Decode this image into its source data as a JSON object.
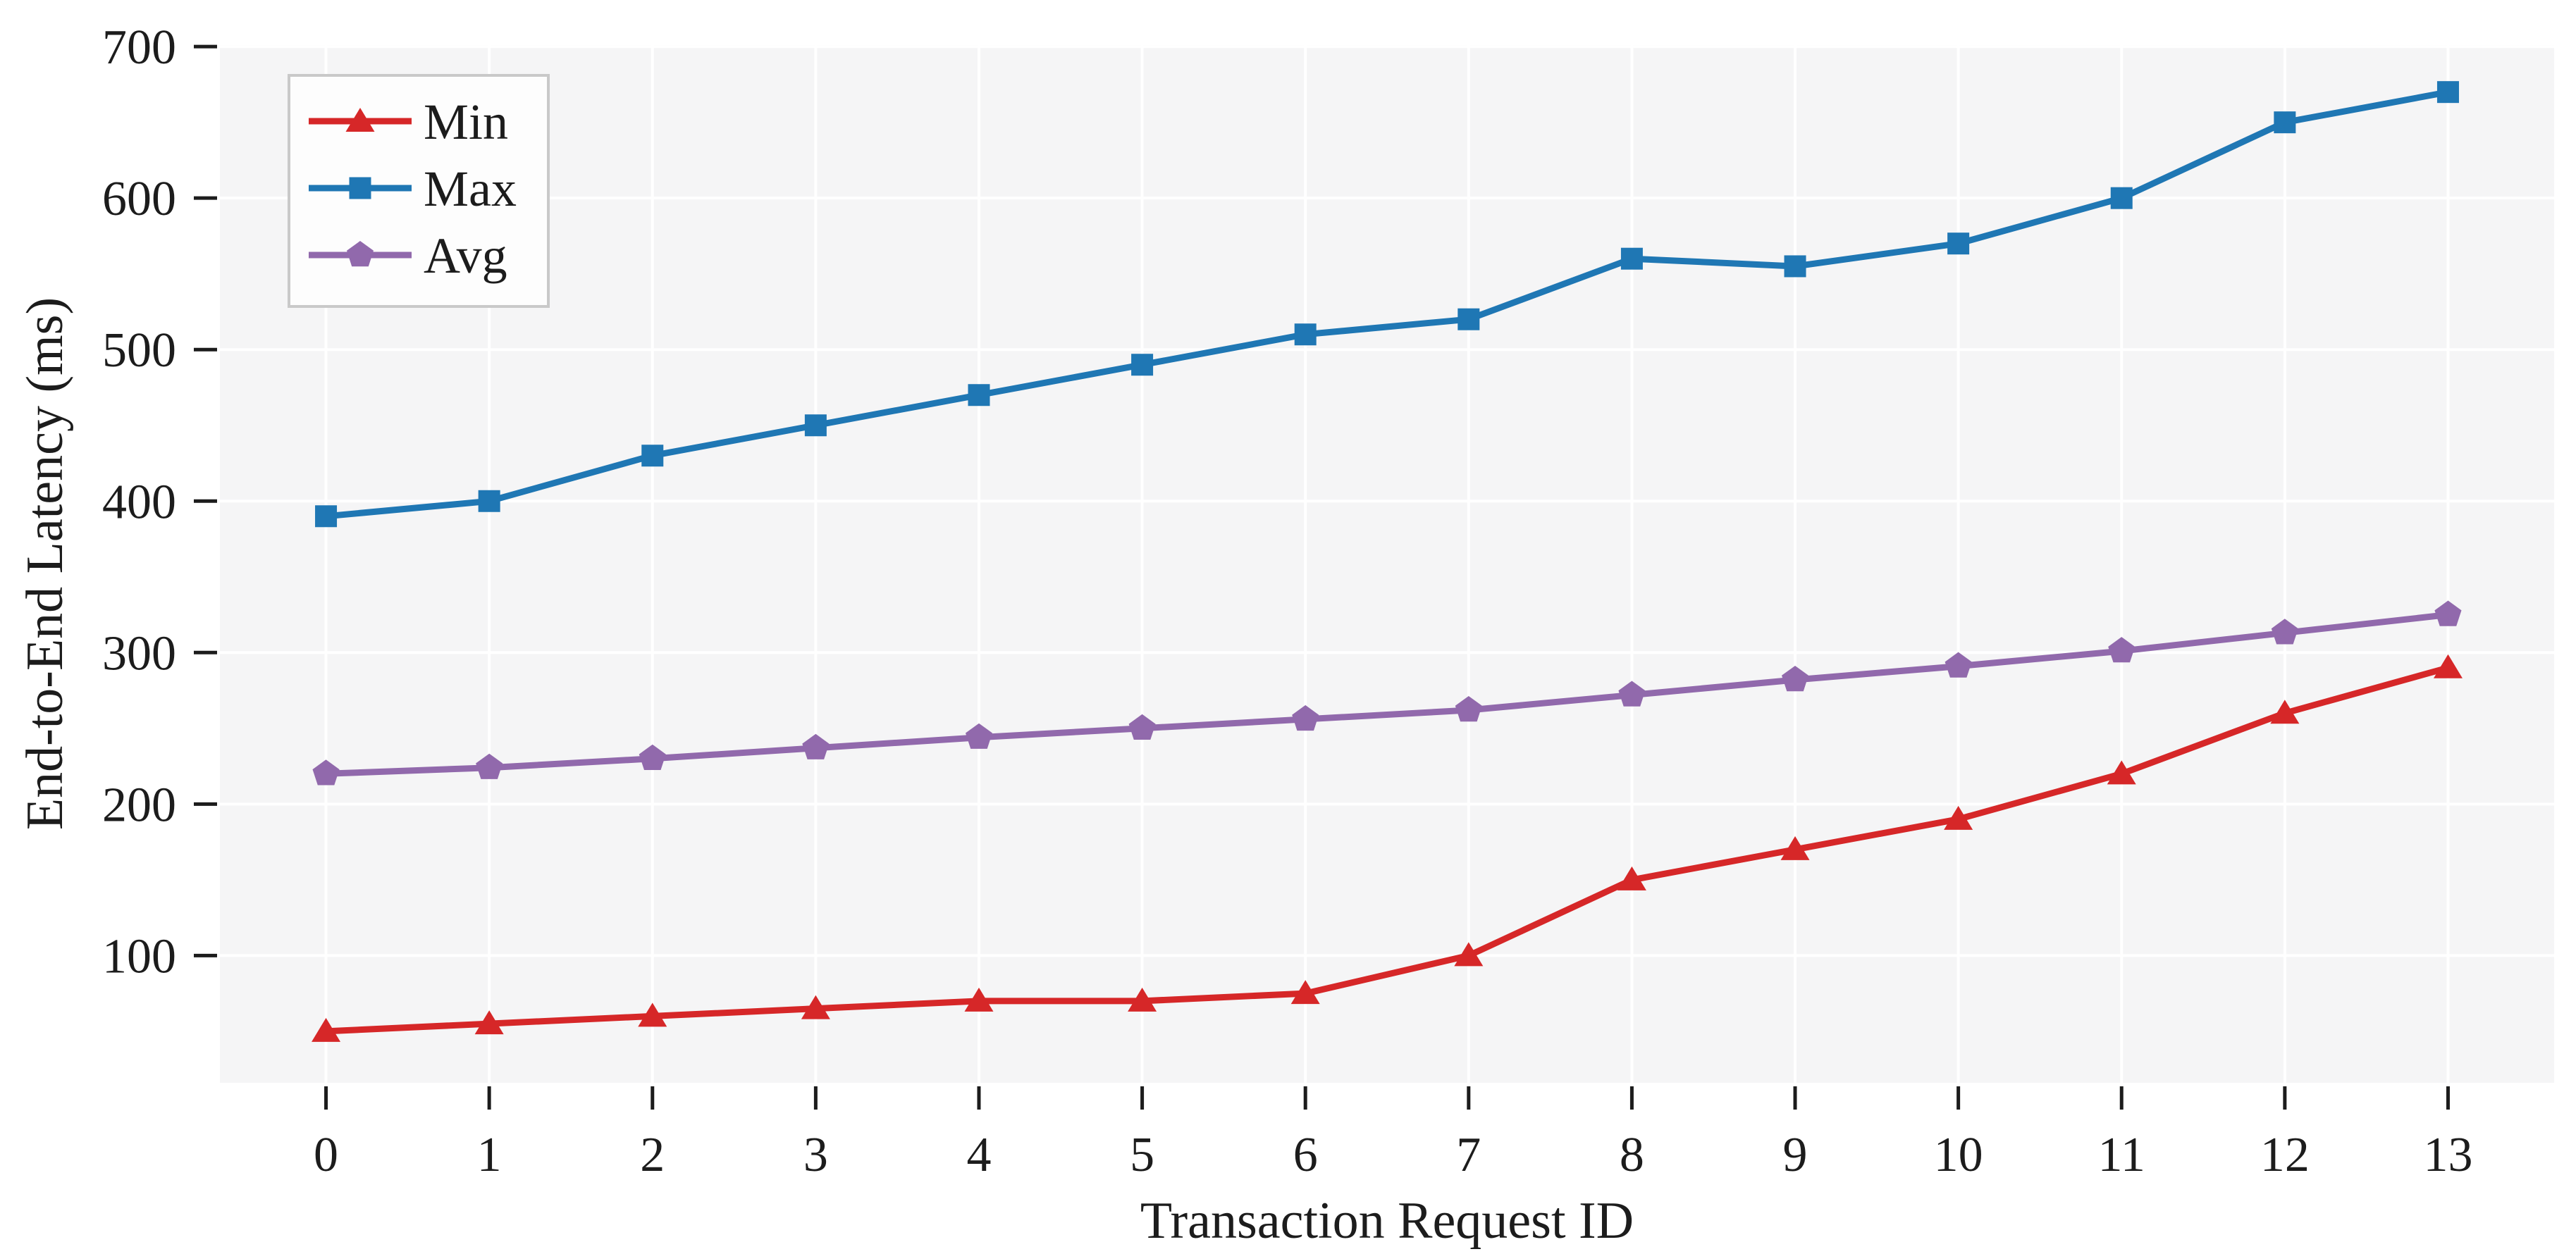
{
  "chart_data": {
    "type": "line",
    "title": "",
    "xlabel": "Transaction Request ID",
    "ylabel": "End-to-End Latency (ms)",
    "x": [
      0,
      1,
      2,
      3,
      4,
      5,
      6,
      7,
      8,
      9,
      10,
      11,
      12,
      13
    ],
    "xtick_labels": [
      "0",
      "1",
      "2",
      "3",
      "4",
      "5",
      "6",
      "7",
      "8",
      "9",
      "10",
      "11",
      "12",
      "13"
    ],
    "yticks": [
      100,
      200,
      300,
      400,
      500,
      600,
      700
    ],
    "ytick_labels": [
      "100",
      "200",
      "300",
      "400",
      "500",
      "600",
      "700"
    ],
    "xlim": [
      -0.65,
      13.65
    ],
    "ylim": [
      16,
      701
    ],
    "grid": true,
    "grid_color": "#ffffff",
    "plot_background": "#f5f5f6",
    "figure_background": "#ffffff",
    "text_color": "#1c1c1c",
    "tick_color": "#1c1c1c",
    "legend_position": "upper left",
    "legend_bg": "#fdfdfd",
    "legend_border": "#c9c9c9",
    "series": [
      {
        "name": "Min",
        "color": "#d62728",
        "marker": "triangle",
        "values": [
          50,
          55,
          60,
          65,
          70,
          70,
          75,
          100,
          150,
          170,
          190,
          220,
          260,
          290
        ]
      },
      {
        "name": "Max",
        "color": "#1f77b4",
        "marker": "square",
        "values": [
          390,
          400,
          430,
          450,
          470,
          490,
          510,
          520,
          560,
          555,
          570,
          600,
          650,
          670
        ]
      },
      {
        "name": "Avg",
        "color": "#9169ac",
        "marker": "pentagon",
        "values": [
          220,
          224,
          230,
          237,
          244,
          250,
          256,
          262,
          272,
          282,
          291,
          301,
          313,
          325
        ]
      }
    ]
  }
}
